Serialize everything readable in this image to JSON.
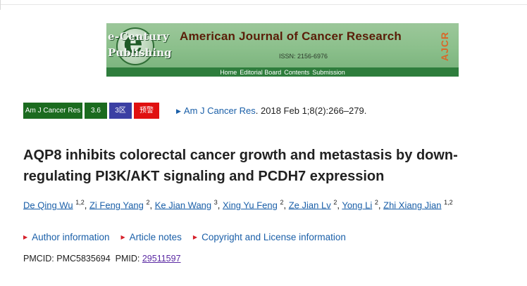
{
  "banner": {
    "publisher_line1": "e-Century",
    "publisher_line2": "Publishing",
    "logo_letter": "e",
    "journal_title": "American Journal of Cancer Research",
    "issn": "ISSN: 2156-6976",
    "side_mark": "AJCR",
    "nav": [
      "Home",
      "Editorial Board",
      "Contents",
      "Submission"
    ]
  },
  "badges": {
    "journal": "Am J Cancer Res",
    "impact": "3.6",
    "zone": "3区",
    "warning": "预警"
  },
  "citation": {
    "journal_link": "Am J Cancer Res",
    "details": ". 2018 Feb 1;8(2):266–279."
  },
  "article": {
    "title": "AQP8 inhibits colorectal cancer growth and metastasis by down-regulating PI3K/AKT signaling and PCDH7 expression"
  },
  "authors": [
    {
      "name": "De Qing Wu",
      "aff": "1,2"
    },
    {
      "name": "Zi Feng Yang",
      "aff": "2"
    },
    {
      "name": "Ke Jian Wang",
      "aff": "3"
    },
    {
      "name": "Xing Yu Feng",
      "aff": "2"
    },
    {
      "name": "Ze Jian Lv",
      "aff": "2"
    },
    {
      "name": "Yong Li",
      "aff": "2"
    },
    {
      "name": "Zhi Xiang Jian",
      "aff": "1,2"
    }
  ],
  "sections": {
    "author_info": "Author information",
    "article_notes": "Article notes",
    "copyright": "Copyright and License information"
  },
  "identifiers": {
    "pmcid_label": "PMCID: ",
    "pmcid": "PMC5835694",
    "pmid_label": "PMID: ",
    "pmid": "29511597"
  },
  "colors": {
    "link": "#1a5fa8",
    "banner_green": "#2e7d3c",
    "badge_green": "#1b6b1f",
    "badge_blue": "#3b3fa3",
    "badge_red": "#e01010",
    "section_marker": "#d6202a"
  }
}
